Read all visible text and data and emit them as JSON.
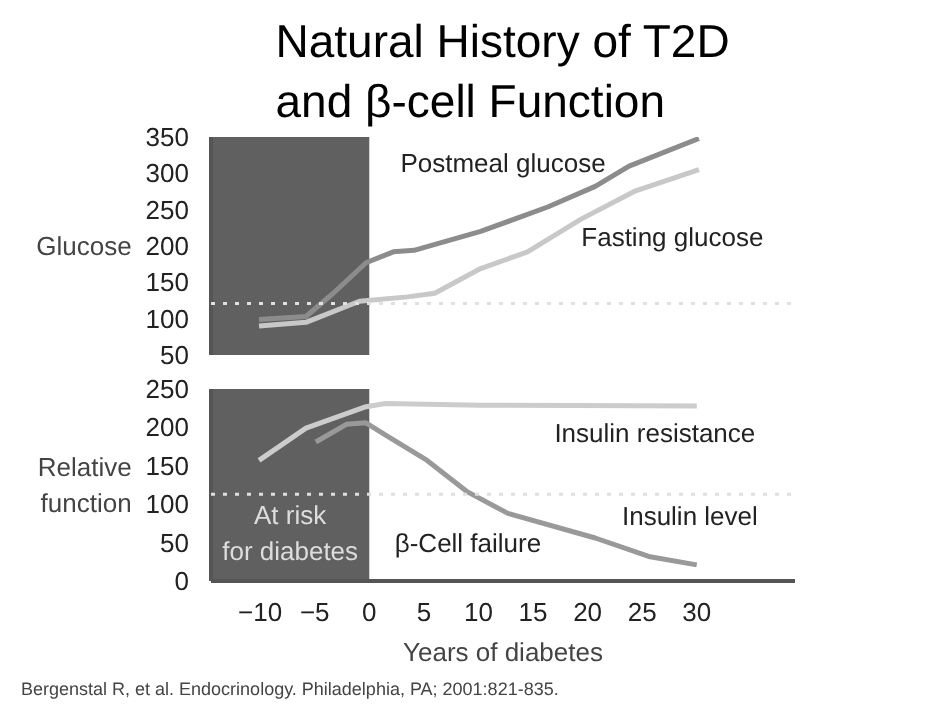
{
  "chart_data": [
    {
      "type": "line",
      "title": "Natural History of T2D\nand β-cell Function",
      "ylabel": "Glucose",
      "xlim": [
        -14.5,
        39
      ],
      "ylim": [
        50,
        350
      ],
      "yticks": [
        50,
        100,
        150,
        200,
        250,
        300,
        350
      ],
      "tick_labels": "y",
      "grid": false,
      "series": [
        {
          "name": "Postmeal glucose",
          "color": "#8c8c8c",
          "x": [
            -10.1,
            -5.8,
            -3.3,
            -0.3,
            2.2,
            4.1,
            10.2,
            16.4,
            20.7,
            23.8,
            30.2
          ],
          "values": [
            99,
            103,
            135,
            177,
            192,
            194,
            220,
            254,
            282,
            310,
            348
          ]
        },
        {
          "name": "Fasting glucose",
          "color": "#c8c8c8",
          "x": [
            -10.1,
            -5.8,
            -0.9,
            3.5,
            6,
            10.2,
            14.5,
            19.4,
            24.4,
            30.2
          ],
          "values": [
            90,
            95,
            124,
            130,
            135,
            169,
            192,
            237,
            276,
            305
          ]
        }
      ],
      "bands": [
        {
          "axis": "x",
          "from": -14.5,
          "to": 0,
          "color": "#606060"
        }
      ],
      "ref_lines": [
        {
          "axis": "y",
          "value": 121,
          "color": "#e0e0e0",
          "line_style": "dotted"
        }
      ]
    },
    {
      "type": "line",
      "xlabel": "Years of diabetes",
      "ylabel": "Relative function",
      "xlim": [
        -14.5,
        39
      ],
      "ylim": [
        0,
        250
      ],
      "xticks": [
        -10,
        -5,
        0,
        5,
        10,
        15,
        20,
        25,
        30
      ],
      "yticks": [
        0,
        50,
        100,
        150,
        200,
        250
      ],
      "grid": false,
      "series": [
        {
          "name": "Insulin resistance",
          "color": "#cccccc",
          "x": [
            -10.1,
            -5.8,
            -0.3,
            1.5,
            10.2,
            30
          ],
          "values": [
            157,
            199,
            227,
            231,
            229,
            228
          ]
        },
        {
          "name": "Insulin level",
          "color": "#999999",
          "x": [
            -4.9,
            -2.1,
            -0.3,
            1.5,
            5.3,
            9,
            12.7,
            20.7,
            25.6,
            30
          ],
          "values": [
            181,
            204,
            206,
            190,
            157,
            116,
            88,
            56,
            32,
            21
          ]
        }
      ],
      "bands": [
        {
          "axis": "x",
          "from": -14.5,
          "to": 0,
          "color": "#606060",
          "label": "At risk\nfor diabetes"
        }
      ],
      "ref_lines": [
        {
          "axis": "y",
          "value": 113,
          "color": "#e0e0e0",
          "line_style": "dotted"
        }
      ],
      "annotations": [
        "β-Cell failure",
        "Bergenstal R, et al. Endocrinology. Philadelphia, PA; 2001:821-835."
      ]
    }
  ]
}
